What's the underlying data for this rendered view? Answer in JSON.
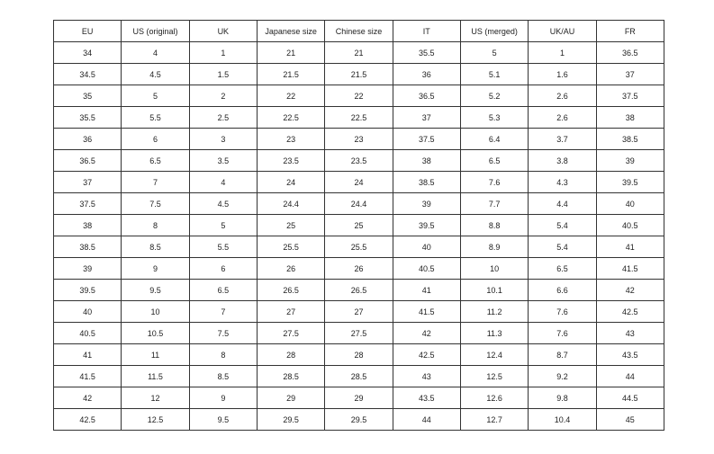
{
  "table": {
    "headers": [
      "EU",
      "US (original)",
      "UK",
      "Japanese size",
      "Chinese size",
      "IT",
      "US (merged)",
      "UK/AU",
      "FR"
    ],
    "rows": [
      [
        "34",
        "4",
        "1",
        "21",
        "21",
        "35.5",
        "5",
        "1",
        "36.5"
      ],
      [
        "34.5",
        "4.5",
        "1.5",
        "21.5",
        "21.5",
        "36",
        "5.1",
        "1.6",
        "37"
      ],
      [
        "35",
        "5",
        "2",
        "22",
        "22",
        "36.5",
        "5.2",
        "2.6",
        "37.5"
      ],
      [
        "35.5",
        "5.5",
        "2.5",
        "22.5",
        "22.5",
        "37",
        "5.3",
        "2.6",
        "38"
      ],
      [
        "36",
        "6",
        "3",
        "23",
        "23",
        "37.5",
        "6.4",
        "3.7",
        "38.5"
      ],
      [
        "36.5",
        "6.5",
        "3.5",
        "23.5",
        "23.5",
        "38",
        "6.5",
        "3.8",
        "39"
      ],
      [
        "37",
        "7",
        "4",
        "24",
        "24",
        "38.5",
        "7.6",
        "4.3",
        "39.5"
      ],
      [
        "37.5",
        "7.5",
        "4.5",
        "24.4",
        "24.4",
        "39",
        "7.7",
        "4.4",
        "40"
      ],
      [
        "38",
        "8",
        "5",
        "25",
        "25",
        "39.5",
        "8.8",
        "5.4",
        "40.5"
      ],
      [
        "38.5",
        "8.5",
        "5.5",
        "25.5",
        "25.5",
        "40",
        "8.9",
        "5.4",
        "41"
      ],
      [
        "39",
        "9",
        "6",
        "26",
        "26",
        "40.5",
        "10",
        "6.5",
        "41.5"
      ],
      [
        "39.5",
        "9.5",
        "6.5",
        "26.5",
        "26.5",
        "41",
        "10.1",
        "6.6",
        "42"
      ],
      [
        "40",
        "10",
        "7",
        "27",
        "27",
        "41.5",
        "11.2",
        "7.6",
        "42.5"
      ],
      [
        "40.5",
        "10.5",
        "7.5",
        "27.5",
        "27.5",
        "42",
        "11.3",
        "7.6",
        "43"
      ],
      [
        "41",
        "11",
        "8",
        "28",
        "28",
        "42.5",
        "12.4",
        "8.7",
        "43.5"
      ],
      [
        "41.5",
        "11.5",
        "8.5",
        "28.5",
        "28.5",
        "43",
        "12.5",
        "9.2",
        "44"
      ],
      [
        "42",
        "12",
        "9",
        "29",
        "29",
        "43.5",
        "12.6",
        "9.8",
        "44.5"
      ],
      [
        "42.5",
        "12.5",
        "9.5",
        "29.5",
        "29.5",
        "44",
        "12.7",
        "10.4",
        "45"
      ]
    ]
  }
}
